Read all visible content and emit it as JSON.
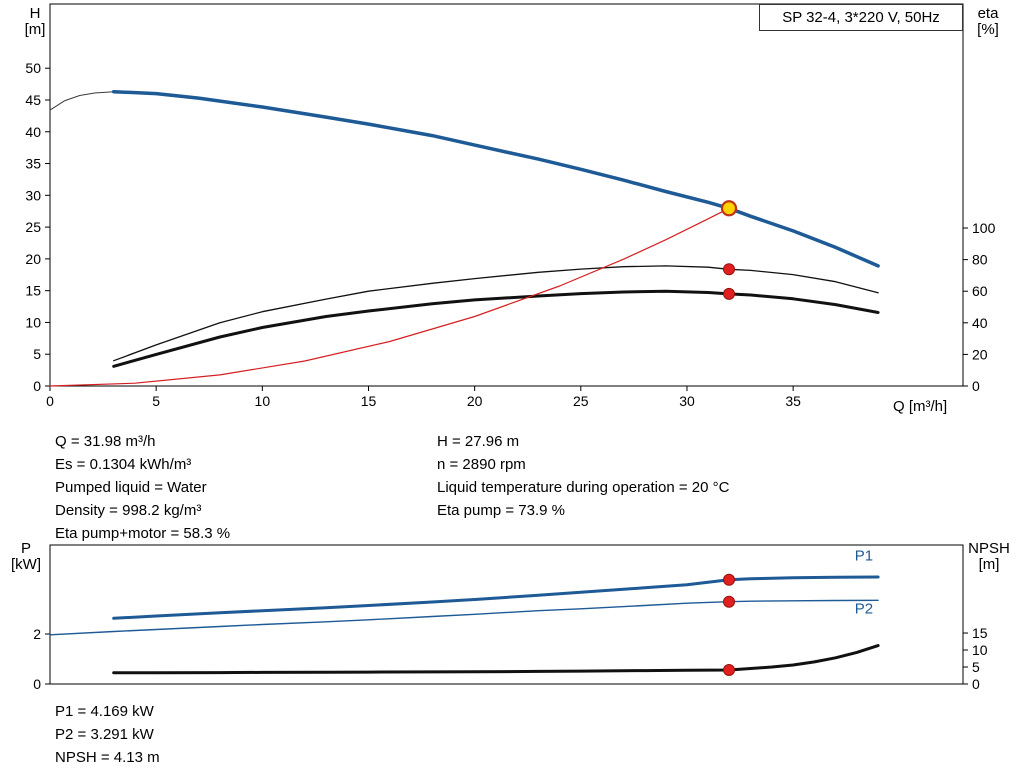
{
  "title_box": "SP 32-4, 3*220 V, 50Hz",
  "colors": {
    "curve_blue": "#1d5a96",
    "curve_black": "#111111",
    "system_red": "#d42020",
    "marker_red": "#e21f1f",
    "duty_yellow": "#ffd400"
  },
  "info": {
    "col1": [
      "Q = 31.98 m³/h",
      "Es = 0.1304 kWh/m³",
      "Pumped liquid = Water",
      "Density = 998.2 kg/m³",
      "Eta pump+motor = 58.3 %"
    ],
    "col2": [
      "H = 27.96 m",
      "n = 2890 rpm",
      "Liquid temperature during operation = 20 °C",
      "Eta pump = 73.9 %"
    ],
    "bottom": [
      "P1 = 4.169 kW",
      "P2 = 3.291 kW",
      "NPSH = 4.13 m"
    ]
  },
  "chart_data": [
    {
      "type": "line",
      "title": "SP 32-4, 3*220 V, 50Hz",
      "xlabel": "Q [m³/h]",
      "x_range": [
        0,
        43
      ],
      "xticks": [
        0,
        5,
        10,
        15,
        20,
        25,
        30,
        35
      ],
      "left_axis": {
        "label": [
          "H",
          "[m]"
        ],
        "range": [
          0,
          60.1
        ],
        "ticks": [
          0,
          5,
          10,
          15,
          20,
          25,
          30,
          35,
          40,
          45,
          50
        ]
      },
      "right_axis": {
        "label": [
          "eta",
          "[%]"
        ],
        "range": [
          0,
          241.8
        ],
        "ticks": [
          0,
          20,
          40,
          60,
          80,
          100
        ]
      },
      "series": [
        {
          "name": "head-curve-extension",
          "color": "#3a3a3a",
          "width": 1,
          "axis": "left",
          "points": [
            [
              0,
              43.4
            ],
            [
              0.7,
              44.9
            ],
            [
              1.4,
              45.7
            ],
            [
              2.1,
              46.1
            ],
            [
              3,
              46.3
            ]
          ]
        },
        {
          "name": "head-curve",
          "color": "#1d5a96",
          "width": 3.5,
          "axis": "left",
          "points": [
            [
              3,
              46.3
            ],
            [
              5,
              46.0
            ],
            [
              7,
              45.3
            ],
            [
              10,
              43.9
            ],
            [
              13,
              42.3
            ],
            [
              15,
              41.2
            ],
            [
              18,
              39.4
            ],
            [
              20,
              37.9
            ],
            [
              23,
              35.7
            ],
            [
              25,
              34.1
            ],
            [
              27,
              32.4
            ],
            [
              29,
              30.6
            ],
            [
              31,
              28.9
            ],
            [
              31.98,
              27.96
            ],
            [
              33,
              26.7
            ],
            [
              35,
              24.4
            ],
            [
              37,
              21.8
            ],
            [
              39,
              18.9
            ]
          ]
        },
        {
          "name": "eta-pump-curve",
          "color": "#111111",
          "width": 1.3,
          "axis": "right",
          "points": [
            [
              3,
              16
            ],
            [
              5,
              26
            ],
            [
              8,
              40
            ],
            [
              10,
              47
            ],
            [
              13,
              55
            ],
            [
              15,
              60
            ],
            [
              18,
              65
            ],
            [
              20,
              68
            ],
            [
              23,
              72
            ],
            [
              25,
              74
            ],
            [
              27,
              75.5
            ],
            [
              29,
              76
            ],
            [
              31,
              75.2
            ],
            [
              31.98,
              73.9
            ],
            [
              33,
              73.2
            ],
            [
              35,
              70.5
            ],
            [
              37,
              66
            ],
            [
              39,
              59
            ]
          ]
        },
        {
          "name": "eta-pump-motor-curve",
          "color": "#111111",
          "width": 3,
          "axis": "right",
          "points": [
            [
              3,
              12.5
            ],
            [
              5,
              20
            ],
            [
              8,
              31
            ],
            [
              10,
              37
            ],
            [
              13,
              44
            ],
            [
              15,
              47.5
            ],
            [
              18,
              52
            ],
            [
              20,
              54.5
            ],
            [
              23,
              57
            ],
            [
              25,
              58.5
            ],
            [
              27,
              59.5
            ],
            [
              29,
              60
            ],
            [
              31,
              59.2
            ],
            [
              31.98,
              58.3
            ],
            [
              33,
              57.6
            ],
            [
              35,
              55.2
            ],
            [
              37,
              51.5
            ],
            [
              39,
              46.5
            ]
          ]
        },
        {
          "name": "system-curve",
          "color": "#d42020",
          "width": 1.2,
          "axis": "left",
          "points": [
            [
              0,
              0
            ],
            [
              4,
              0.44
            ],
            [
              8,
              1.75
            ],
            [
              12,
              3.93
            ],
            [
              16,
              7.0
            ],
            [
              20,
              10.93
            ],
            [
              24,
              15.74
            ],
            [
              27,
              19.93
            ],
            [
              29,
              23.0
            ],
            [
              31,
              26.3
            ],
            [
              31.98,
              27.96
            ]
          ]
        }
      ],
      "markers": [
        {
          "name": "duty-point",
          "x": 31.98,
          "value": 27.96,
          "axis": "left",
          "style": "op"
        },
        {
          "name": "eta-pump-point",
          "x": 31.98,
          "value": 73.9,
          "axis": "right",
          "style": "dot"
        },
        {
          "name": "eta-pump-motor-point",
          "x": 31.98,
          "value": 58.3,
          "axis": "right",
          "style": "dot"
        }
      ]
    },
    {
      "type": "line",
      "xlabel": "",
      "x_range": [
        0,
        43
      ],
      "xticks": [],
      "left_axis": {
        "label": [
          "P",
          "[kW]"
        ],
        "range": [
          0,
          5.56
        ],
        "ticks": [
          0,
          2
        ]
      },
      "right_axis": {
        "label": [
          "NPSH",
          "[m]"
        ],
        "range": [
          0,
          40.9
        ],
        "ticks": [
          0,
          5,
          10,
          15
        ]
      },
      "series": [
        {
          "name": "p1-curve",
          "color": "#1d5a96",
          "width": 3,
          "axis": "left",
          "label": "P1",
          "label_pos": [
            37.9,
            4.95
          ],
          "points": [
            [
              3,
              2.63
            ],
            [
              5,
              2.72
            ],
            [
              8,
              2.85
            ],
            [
              10,
              2.93
            ],
            [
              13,
              3.05
            ],
            [
              15,
              3.14
            ],
            [
              18,
              3.28
            ],
            [
              20,
              3.38
            ],
            [
              23,
              3.55
            ],
            [
              25,
              3.67
            ],
            [
              28,
              3.85
            ],
            [
              30,
              3.97
            ],
            [
              31.98,
              4.169
            ],
            [
              33,
              4.21
            ],
            [
              35,
              4.25
            ],
            [
              37,
              4.27
            ],
            [
              39,
              4.28
            ]
          ]
        },
        {
          "name": "p2-curve",
          "color": "#1d5a96",
          "width": 1.4,
          "axis": "left",
          "label": "P2",
          "label_pos": [
            37.9,
            2.82
          ],
          "points": [
            [
              0,
              1.97
            ],
            [
              3,
              2.1
            ],
            [
              5,
              2.18
            ],
            [
              8,
              2.3
            ],
            [
              10,
              2.38
            ],
            [
              13,
              2.49
            ],
            [
              15,
              2.57
            ],
            [
              18,
              2.7
            ],
            [
              20,
              2.79
            ],
            [
              23,
              2.93
            ],
            [
              25,
              3.01
            ],
            [
              28,
              3.14
            ],
            [
              30,
              3.23
            ],
            [
              31.98,
              3.291
            ],
            [
              33,
              3.31
            ],
            [
              35,
              3.33
            ],
            [
              37,
              3.34
            ],
            [
              39,
              3.35
            ]
          ]
        },
        {
          "name": "npsh-curve",
          "color": "#111111",
          "width": 3,
          "axis": "right",
          "points": [
            [
              3,
              3.3
            ],
            [
              5,
              3.3
            ],
            [
              8,
              3.35
            ],
            [
              10,
              3.4
            ],
            [
              13,
              3.45
            ],
            [
              15,
              3.5
            ],
            [
              18,
              3.55
            ],
            [
              20,
              3.6
            ],
            [
              23,
              3.72
            ],
            [
              25,
              3.8
            ],
            [
              28,
              3.95
            ],
            [
              30,
              4.05
            ],
            [
              31.98,
              4.13
            ],
            [
              33,
              4.55
            ],
            [
              34,
              5.0
            ],
            [
              35,
              5.6
            ],
            [
              36,
              6.5
            ],
            [
              37,
              7.7
            ],
            [
              38,
              9.3
            ],
            [
              39,
              11.3
            ]
          ]
        }
      ],
      "markers": [
        {
          "name": "p1-point",
          "x": 31.98,
          "value": 4.169,
          "axis": "left",
          "style": "dot"
        },
        {
          "name": "p2-point",
          "x": 31.98,
          "value": 3.291,
          "axis": "left",
          "style": "dot"
        },
        {
          "name": "npsh-point",
          "x": 31.98,
          "value": 4.13,
          "axis": "right",
          "style": "dot"
        }
      ]
    }
  ]
}
